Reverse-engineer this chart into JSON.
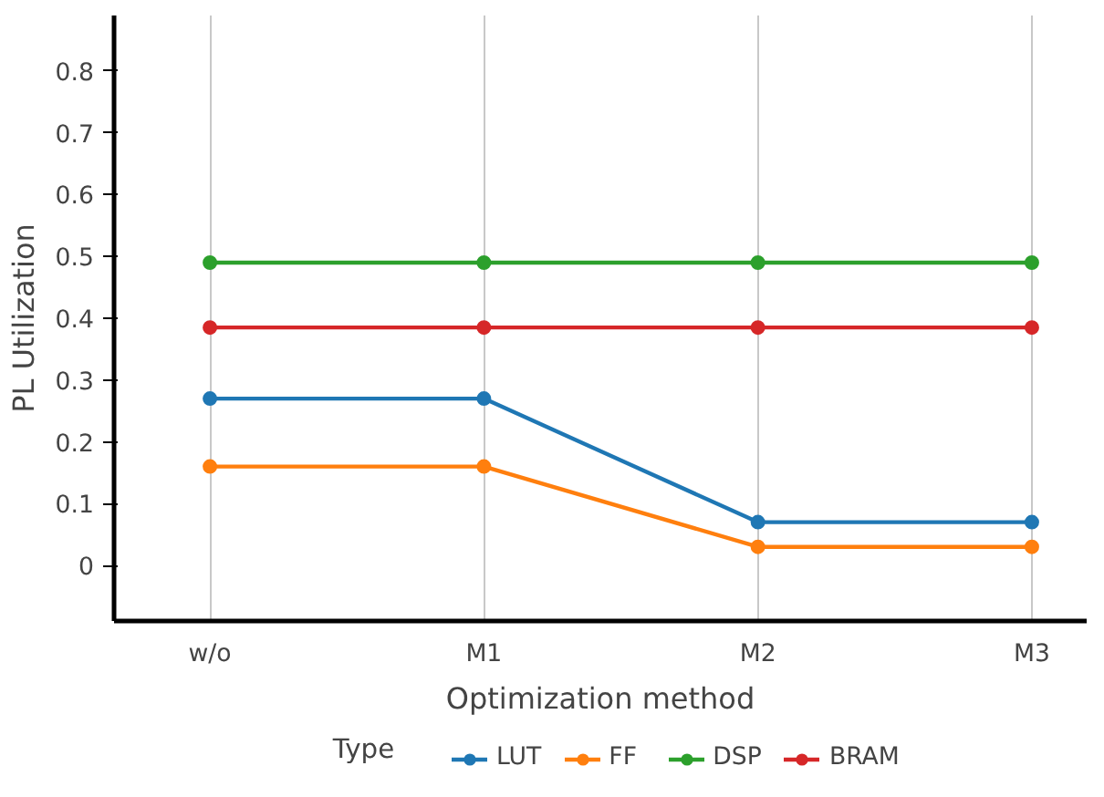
{
  "chart_data": {
    "type": "line",
    "xlabel": "Optimization method",
    "ylabel": "PL Utilization",
    "legend_title": "Type",
    "categories": [
      "w/o",
      "M1",
      "M2",
      "M3"
    ],
    "series": [
      {
        "name": "LUT",
        "color": "#1f77b4",
        "values": [
          0.27,
          0.27,
          0.07,
          0.07
        ]
      },
      {
        "name": "FF",
        "color": "#ff7f0e",
        "values": [
          0.16,
          0.16,
          0.03,
          0.03
        ]
      },
      {
        "name": "DSP",
        "color": "#2ca02c",
        "values": [
          0.49,
          0.49,
          0.49,
          0.49
        ]
      },
      {
        "name": "BRAM",
        "color": "#d62728",
        "values": [
          0.385,
          0.385,
          0.385,
          0.385
        ]
      }
    ],
    "ylim": [
      -0.09,
      0.89
    ],
    "yticks": [
      0,
      0.1,
      0.2,
      0.3,
      0.4,
      0.5,
      0.6,
      0.7,
      0.8
    ],
    "grid": "x",
    "legend": "bottom",
    "marker": "circle",
    "line_style": "solid"
  }
}
